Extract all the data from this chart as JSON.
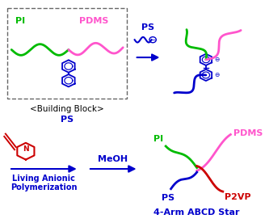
{
  "bg_color": "#ffffff",
  "colors": {
    "PI": "#00bb00",
    "PDMS": "#ff55cc",
    "PS": "#0000cc",
    "P2VP": "#cc0000",
    "DPE": "#0000cc",
    "arrow": "#0000cc",
    "dashed_box": "#666666",
    "pyridine_red": "#cc0000",
    "text_blue": "#0000cc",
    "black": "#000000"
  },
  "labels": {
    "PI": "PI",
    "PDMS": "PDMS",
    "PS": "PS",
    "P2VP": "P2VP",
    "building_block": "<Building Block>",
    "living_anionic_1": "Living Anionic",
    "living_anionic_2": "Polymerization",
    "MeOH": "MeOH",
    "star": "4-Arm ABCD Star"
  }
}
